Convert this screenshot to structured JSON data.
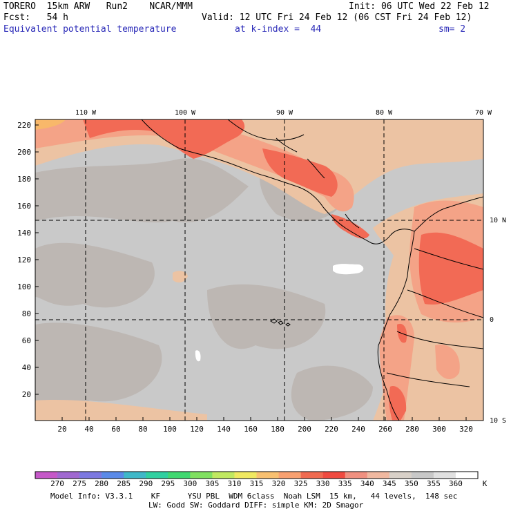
{
  "header": {
    "model": "TORERO  15km ARW   Run2    NCAR/MMM",
    "init": "Init: 06 UTC Wed 22 Feb 12",
    "fcst": "Fcst:   54 h",
    "valid": "Valid: 12 UTC Fri 24 Feb 12 (06 CST Fri 24 Feb 12)",
    "field": "Equivalent potential temperature",
    "level": "at k-index =  44",
    "smoothing": "sm= 2"
  },
  "map": {
    "lon_labels": [
      "110 W",
      "100 W",
      "90 W",
      "80 W",
      "70 W"
    ],
    "lat_labels": [
      "10 N",
      "0",
      "10 S"
    ],
    "y_ticks": [
      "220",
      "200",
      "180",
      "160",
      "140",
      "120",
      "100",
      "80",
      "60",
      "40",
      "20"
    ],
    "x_ticks": [
      "20",
      "40",
      "60",
      "80",
      "100",
      "120",
      "140",
      "160",
      "180",
      "200",
      "220",
      "240",
      "260",
      "280",
      "300",
      "320"
    ],
    "colors": {
      "background": "#c9c9c9",
      "cool": "#d0d0d0",
      "mid": "#bdb7b3",
      "warm_tan": "#ecc3a3",
      "salmon": "#f4a387",
      "red": "#f26a55",
      "orange_red": "#f08770",
      "yellow": "#f8b86a",
      "white": "#ffffff"
    }
  },
  "colorbar": {
    "values": [
      "270",
      "275",
      "280",
      "285",
      "290",
      "295",
      "300",
      "305",
      "310",
      "315",
      "320",
      "325",
      "330",
      "335",
      "340",
      "345",
      "350",
      "355",
      "360"
    ],
    "unit": "K",
    "colors": [
      "#c558c8",
      "#a068d0",
      "#7c78e0",
      "#5a8ae8",
      "#3fb8c8",
      "#30d0a0",
      "#40d870",
      "#80e060",
      "#c0e860",
      "#f0e860",
      "#f8c070",
      "#f8a070",
      "#f06a50",
      "#f04a40",
      "#f09080",
      "#f0b8a0",
      "#d8d0c8",
      "#c8c8c8",
      "#e0e0e0",
      "#ffffff"
    ]
  },
  "footer": {
    "line1": "Model Info: V3.3.1    KF      YSU PBL  WDM 6class  Noah LSM  15 km,   44 levels,  148 sec",
    "line2": "LW: Godd SW: Goddard DIFF: simple KM: 2D Smagor"
  }
}
